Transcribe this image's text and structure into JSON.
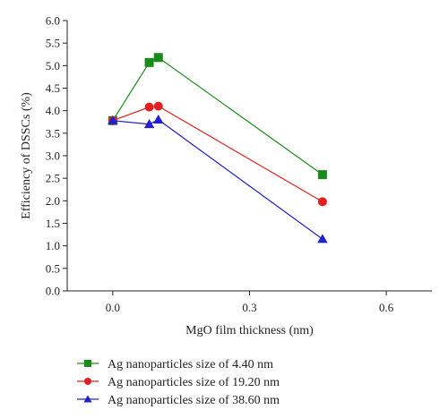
{
  "chart_data": {
    "type": "line",
    "title": "",
    "xlabel": "MgO film thickness (nm)",
    "ylabel": "Efficiency of DSSCs (%)",
    "xlim": [
      -0.1,
      0.7
    ],
    "ylim": [
      0.0,
      6.0
    ],
    "xticks": [
      "0.0",
      "0.3",
      "0.6"
    ],
    "xtick_values": [
      0.0,
      0.3,
      0.6
    ],
    "yticks": [
      "0.0",
      "0.5",
      "1.0",
      "1.5",
      "2.0",
      "2.5",
      "3.0",
      "3.5",
      "4.0",
      "4.5",
      "5.0",
      "5.5",
      "6.0"
    ],
    "ytick_values": [
      0.0,
      0.5,
      1.0,
      1.5,
      2.0,
      2.5,
      3.0,
      3.5,
      4.0,
      4.5,
      5.0,
      5.5,
      6.0
    ],
    "grid": false,
    "legend_position": "bottom",
    "series": [
      {
        "name": "Ag nanoparticles size of 4.40 nm",
        "color": "#1a8a1a",
        "marker": "square",
        "x": [
          0.0,
          0.08,
          0.1,
          0.46
        ],
        "y": [
          3.78,
          5.07,
          5.18,
          2.58
        ]
      },
      {
        "name": "Ag nanoparticles size of 19.20 nm",
        "color": "#e02020",
        "marker": "circle",
        "x": [
          0.0,
          0.08,
          0.1,
          0.46
        ],
        "y": [
          3.78,
          4.08,
          4.1,
          1.98
        ]
      },
      {
        "name": "Ag nanoparticles size of 38.60 nm",
        "color": "#2020d0",
        "marker": "triangle",
        "x": [
          0.0,
          0.08,
          0.1,
          0.46
        ],
        "y": [
          3.78,
          3.7,
          3.8,
          1.15
        ]
      }
    ]
  }
}
